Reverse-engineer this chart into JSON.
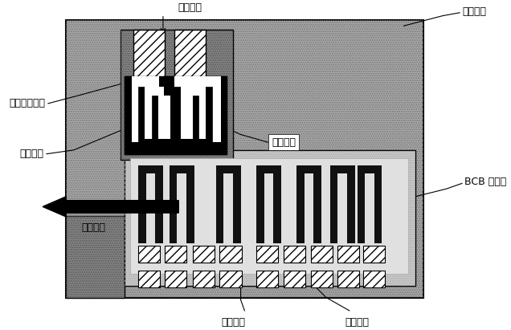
{
  "fig_width": 6.36,
  "fig_height": 4.11,
  "dpi": 100,
  "labels": {
    "jin_top": "金互连线",
    "polyimide": "聚酰亚胺",
    "alumina_ref": "氧化铝参考区",
    "sensing_r": "传感电阻",
    "ref_r": "参考电阻",
    "bcb": "BCB 键合胶",
    "sens_dir": "敏感方向",
    "heating_r": "加热电阻",
    "jin_bottom": "金互连线"
  },
  "colors": {
    "white": "#ffffff",
    "black": "#000000",
    "dark_gray": "#555555",
    "mid_gray": "#888888",
    "light_gray": "#cccccc",
    "lighter_gray": "#dddddd",
    "bg_outer": "#999999",
    "bg_inner": "#bbbbbb"
  }
}
